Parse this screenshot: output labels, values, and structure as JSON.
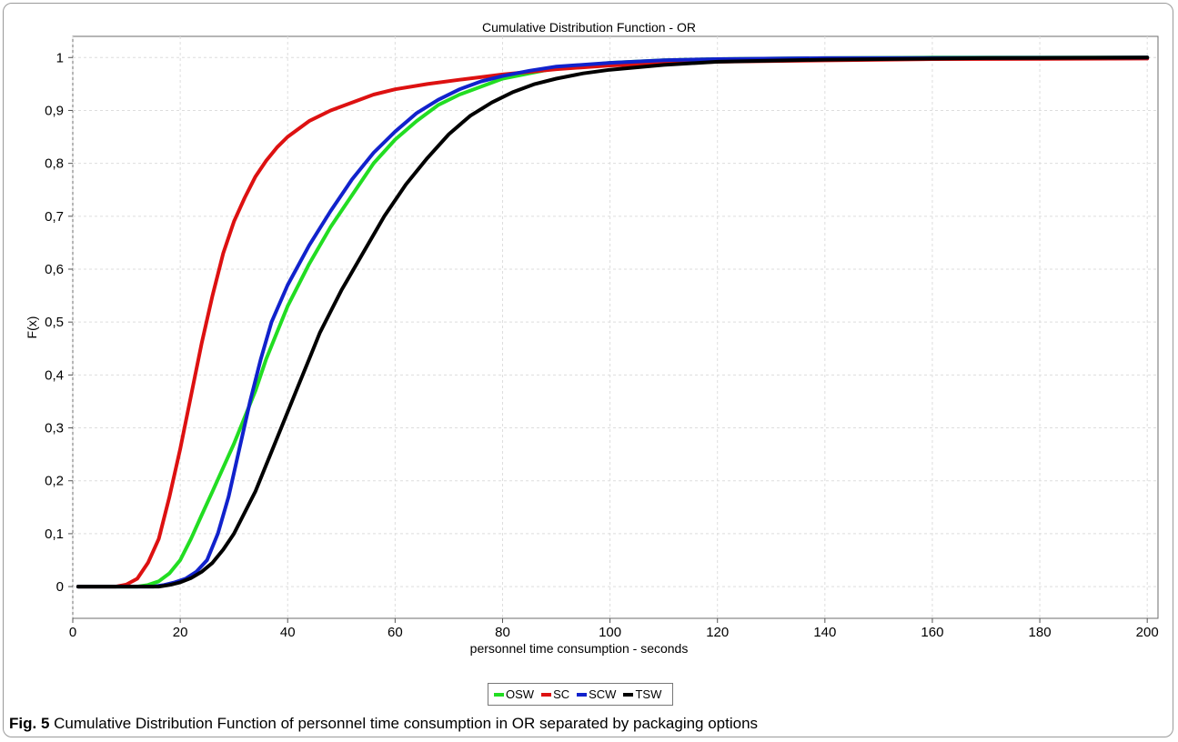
{
  "chart_data": {
    "type": "line",
    "title": "Cumulative Distribution Function - OR",
    "xlabel": "personnel time consumption - seconds",
    "ylabel": "F(x)",
    "xlim": [
      0,
      202
    ],
    "ylim": [
      -0.06,
      1.04
    ],
    "x_ticks": [
      "0",
      "20",
      "40",
      "60",
      "80",
      "100",
      "120",
      "140",
      "160",
      "180",
      "200"
    ],
    "y_ticks": [
      "0",
      "0,1",
      "0,2",
      "0,3",
      "0,4",
      "0,5",
      "0,6",
      "0,7",
      "0,8",
      "0,9",
      "1"
    ],
    "grid": true,
    "legend_position": "bottom-center",
    "series": [
      {
        "name": "OSW",
        "color": "#22dd22",
        "points": [
          [
            1,
            0
          ],
          [
            12,
            0
          ],
          [
            14,
            0.003
          ],
          [
            16,
            0.01
          ],
          [
            18,
            0.025
          ],
          [
            20,
            0.05
          ],
          [
            22,
            0.09
          ],
          [
            24,
            0.135
          ],
          [
            26,
            0.18
          ],
          [
            28,
            0.225
          ],
          [
            30,
            0.27
          ],
          [
            32,
            0.32
          ],
          [
            34,
            0.37
          ],
          [
            36,
            0.43
          ],
          [
            38,
            0.48
          ],
          [
            40,
            0.53
          ],
          [
            44,
            0.61
          ],
          [
            48,
            0.68
          ],
          [
            52,
            0.74
          ],
          [
            56,
            0.8
          ],
          [
            60,
            0.845
          ],
          [
            64,
            0.88
          ],
          [
            68,
            0.91
          ],
          [
            72,
            0.93
          ],
          [
            76,
            0.945
          ],
          [
            80,
            0.96
          ],
          [
            85,
            0.97
          ],
          [
            90,
            0.98
          ],
          [
            100,
            0.99
          ],
          [
            110,
            0.995
          ],
          [
            120,
            0.997
          ],
          [
            140,
            0.999
          ],
          [
            160,
            1.0
          ],
          [
            200,
            1.0
          ]
        ]
      },
      {
        "name": "SC",
        "color": "#dd1111",
        "points": [
          [
            1,
            0
          ],
          [
            8,
            0
          ],
          [
            10,
            0.004
          ],
          [
            12,
            0.015
          ],
          [
            14,
            0.045
          ],
          [
            16,
            0.09
          ],
          [
            18,
            0.17
          ],
          [
            20,
            0.26
          ],
          [
            22,
            0.36
          ],
          [
            24,
            0.46
          ],
          [
            26,
            0.55
          ],
          [
            28,
            0.63
          ],
          [
            30,
            0.69
          ],
          [
            32,
            0.735
          ],
          [
            34,
            0.775
          ],
          [
            36,
            0.805
          ],
          [
            38,
            0.83
          ],
          [
            40,
            0.85
          ],
          [
            44,
            0.88
          ],
          [
            48,
            0.9
          ],
          [
            52,
            0.915
          ],
          [
            56,
            0.93
          ],
          [
            60,
            0.94
          ],
          [
            66,
            0.95
          ],
          [
            72,
            0.958
          ],
          [
            80,
            0.968
          ],
          [
            90,
            0.978
          ],
          [
            100,
            0.985
          ],
          [
            120,
            0.992
          ],
          [
            160,
            0.997
          ],
          [
            200,
            0.998
          ]
        ]
      },
      {
        "name": "SCW",
        "color": "#1122cc",
        "points": [
          [
            1,
            0
          ],
          [
            15,
            0
          ],
          [
            17,
            0.003
          ],
          [
            19,
            0.008
          ],
          [
            21,
            0.015
          ],
          [
            23,
            0.028
          ],
          [
            25,
            0.05
          ],
          [
            27,
            0.1
          ],
          [
            29,
            0.17
          ],
          [
            31,
            0.26
          ],
          [
            33,
            0.35
          ],
          [
            35,
            0.43
          ],
          [
            37,
            0.5
          ],
          [
            40,
            0.57
          ],
          [
            44,
            0.645
          ],
          [
            48,
            0.71
          ],
          [
            52,
            0.77
          ],
          [
            56,
            0.82
          ],
          [
            60,
            0.86
          ],
          [
            64,
            0.895
          ],
          [
            68,
            0.92
          ],
          [
            72,
            0.94
          ],
          [
            76,
            0.955
          ],
          [
            80,
            0.965
          ],
          [
            85,
            0.975
          ],
          [
            90,
            0.983
          ],
          [
            100,
            0.99
          ],
          [
            110,
            0.995
          ],
          [
            120,
            0.997
          ],
          [
            140,
            0.999
          ],
          [
            200,
            1.0
          ]
        ]
      },
      {
        "name": "TSW",
        "color": "#000000",
        "points": [
          [
            1,
            0
          ],
          [
            16,
            0
          ],
          [
            18,
            0.003
          ],
          [
            20,
            0.008
          ],
          [
            22,
            0.016
          ],
          [
            24,
            0.028
          ],
          [
            26,
            0.045
          ],
          [
            28,
            0.07
          ],
          [
            30,
            0.1
          ],
          [
            32,
            0.14
          ],
          [
            34,
            0.18
          ],
          [
            36,
            0.23
          ],
          [
            38,
            0.28
          ],
          [
            40,
            0.33
          ],
          [
            42,
            0.38
          ],
          [
            44,
            0.43
          ],
          [
            46,
            0.48
          ],
          [
            48,
            0.52
          ],
          [
            50,
            0.56
          ],
          [
            54,
            0.63
          ],
          [
            58,
            0.7
          ],
          [
            62,
            0.76
          ],
          [
            66,
            0.81
          ],
          [
            70,
            0.855
          ],
          [
            74,
            0.89
          ],
          [
            78,
            0.915
          ],
          [
            82,
            0.935
          ],
          [
            86,
            0.95
          ],
          [
            90,
            0.96
          ],
          [
            95,
            0.97
          ],
          [
            100,
            0.977
          ],
          [
            110,
            0.986
          ],
          [
            120,
            0.992
          ],
          [
            140,
            0.996
          ],
          [
            170,
            0.999
          ],
          [
            200,
            1.0
          ]
        ]
      }
    ]
  },
  "caption": {
    "label": "Fig. 5",
    "text": " Cumulative Distribution Function of personnel time consumption in OR separated by packaging options"
  }
}
